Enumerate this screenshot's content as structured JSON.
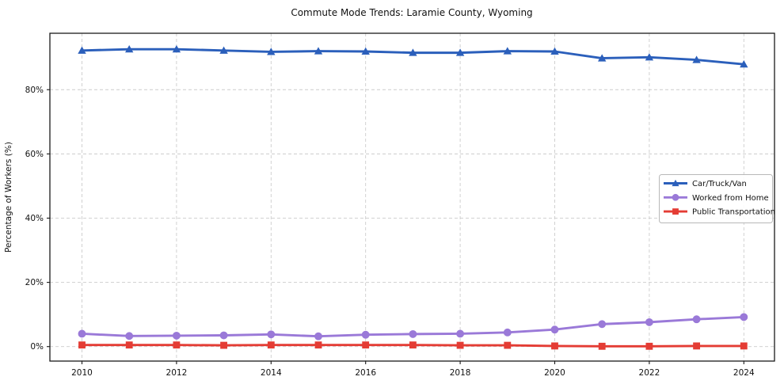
{
  "chart_data": {
    "type": "line",
    "title": "Commute Mode Trends: Laramie County, Wyoming",
    "xlabel": "",
    "ylabel": "Percentage of Workers (%)",
    "x": [
      2010,
      2011,
      2012,
      2013,
      2014,
      2015,
      2016,
      2017,
      2018,
      2019,
      2020,
      2021,
      2022,
      2023,
      2024
    ],
    "x_tick_labels": [
      "2010",
      "2012",
      "2014",
      "2016",
      "2018",
      "2020",
      "2022",
      "2024"
    ],
    "x_ticks": [
      2010,
      2012,
      2014,
      2016,
      2018,
      2020,
      2022,
      2024
    ],
    "y_ticks": [
      0,
      20,
      40,
      60,
      80
    ],
    "y_tick_labels": [
      "0%",
      "20%",
      "40%",
      "60%",
      "80%"
    ],
    "ylim": [
      -4.5,
      97.5
    ],
    "grid": true,
    "grid_style": "dashed",
    "grid_color": "#cccccc",
    "frame_color": "#1a1a1a",
    "legend_position": "right-middle",
    "series": [
      {
        "name": "Car/Truck/Van",
        "color": "#2b5fbb",
        "marker": "triangle",
        "values": [
          92.2,
          92.6,
          92.6,
          92.2,
          91.8,
          92.0,
          91.9,
          91.5,
          91.5,
          92.0,
          91.9,
          89.8,
          90.1,
          89.3,
          87.9
        ]
      },
      {
        "name": "Worked from Home",
        "color": "#9a79d8",
        "marker": "circle",
        "values": [
          4.0,
          3.3,
          3.4,
          3.5,
          3.8,
          3.2,
          3.7,
          3.9,
          4.0,
          4.4,
          5.3,
          7.0,
          7.6,
          8.5,
          9.2
        ]
      },
      {
        "name": "Public Transportation",
        "color": "#e43c34",
        "marker": "square",
        "values": [
          0.5,
          0.5,
          0.5,
          0.4,
          0.5,
          0.5,
          0.5,
          0.5,
          0.4,
          0.4,
          0.2,
          0.1,
          0.1,
          0.2,
          0.2
        ]
      }
    ]
  }
}
